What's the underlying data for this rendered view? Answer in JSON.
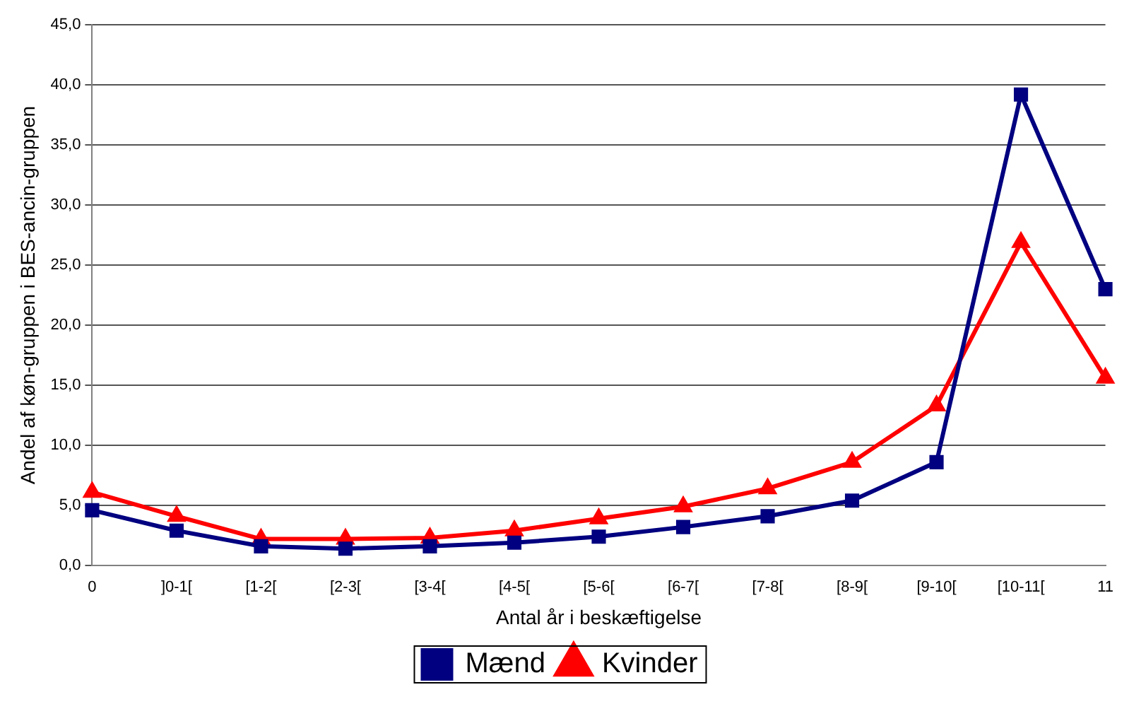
{
  "chart_data": {
    "type": "line",
    "xlabel": "Antal år i beskæftigelse",
    "ylabel": "Andel af køn-gruppen i BES-ancin-gruppen",
    "categories": [
      "0",
      "]0-1[",
      "[1-2[",
      "[2-3[",
      "[3-4[",
      "[4-5[",
      "[5-6[",
      "[6-7[",
      "[7-8[",
      "[8-9[",
      "[9-10[",
      "[10-11[",
      "11"
    ],
    "series": [
      {
        "name": "Mænd",
        "color": "#000080",
        "marker": "square",
        "values": [
          4.6,
          2.9,
          1.6,
          1.4,
          1.6,
          1.9,
          2.4,
          3.2,
          4.1,
          5.4,
          8.6,
          39.2,
          23.0
        ]
      },
      {
        "name": "Kvinder",
        "color": "#ff0000",
        "marker": "triangle",
        "values": [
          6.1,
          4.1,
          2.2,
          2.2,
          2.3,
          2.9,
          3.9,
          4.9,
          6.4,
          8.6,
          13.3,
          26.9,
          15.6
        ]
      }
    ],
    "ylim": [
      0,
      45
    ],
    "yticks": [
      {
        "value": 0,
        "label": "0,0"
      },
      {
        "value": 5,
        "label": "5,0"
      },
      {
        "value": 10,
        "label": "10,0"
      },
      {
        "value": 15,
        "label": "15,0"
      },
      {
        "value": 20,
        "label": "20,0"
      },
      {
        "value": 25,
        "label": "25,0"
      },
      {
        "value": 30,
        "label": "30,0"
      },
      {
        "value": 35,
        "label": "35,0"
      },
      {
        "value": 40,
        "label": "40,0"
      },
      {
        "value": 45,
        "label": "45,0"
      }
    ],
    "grid": "y",
    "legend": "bottom",
    "line_style": "solid"
  }
}
